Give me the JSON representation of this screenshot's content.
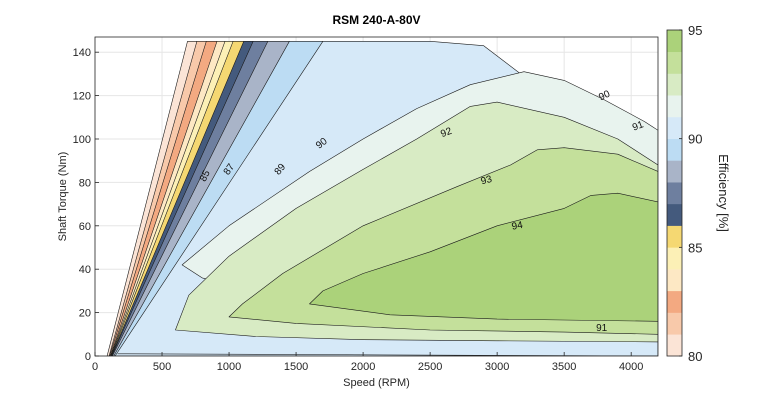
{
  "chart_data": {
    "type": "contour",
    "title": "RSM 240-A-80V",
    "xlabel": "Speed (RPM)",
    "ylabel": "Shaft Torque (Nm)",
    "colorbar_label": "Efficiency [%]",
    "xlim": [
      0,
      4200
    ],
    "ylim": [
      0,
      147
    ],
    "x_ticks": [
      0,
      500,
      1000,
      1500,
      2000,
      2500,
      3000,
      3500,
      4000
    ],
    "y_ticks": [
      0,
      20,
      40,
      60,
      80,
      100,
      120,
      140
    ],
    "colorbar": {
      "range": [
        80,
        95
      ],
      "ticks": [
        80,
        85,
        90,
        95
      ],
      "levels": [
        {
          "from": 80,
          "to": 81,
          "color": "#fbe4d6"
        },
        {
          "from": 81,
          "to": 82,
          "color": "#f8c9aa"
        },
        {
          "from": 82,
          "to": 83,
          "color": "#f3a981"
        },
        {
          "from": 83,
          "to": 84,
          "color": "#fde8c4"
        },
        {
          "from": 84,
          "to": 85,
          "color": "#fcf0b6"
        },
        {
          "from": 85,
          "to": 86,
          "color": "#f5d872"
        },
        {
          "from": 86,
          "to": 87,
          "color": "#445a7d"
        },
        {
          "from": 87,
          "to": 88,
          "color": "#6e7f9f"
        },
        {
          "from": 88,
          "to": 89,
          "color": "#a9b4c8"
        },
        {
          "from": 89,
          "to": 90,
          "color": "#bcdcf3"
        },
        {
          "from": 90,
          "to": 91,
          "color": "#d6e9f8"
        },
        {
          "from": 91,
          "to": 92,
          "color": "#e8f3ee"
        },
        {
          "from": 92,
          "to": 93,
          "color": "#d8ebc4"
        },
        {
          "from": 93,
          "to": 94,
          "color": "#c4e09b"
        },
        {
          "from": 94,
          "to": 95,
          "color": "#abd27a"
        }
      ]
    },
    "regions": [
      {
        "level": 80,
        "points": [
          [
            90,
            0
          ],
          [
            4200,
            0
          ],
          [
            4200,
            2
          ],
          [
            800,
            145
          ],
          [
            690,
            145
          ]
        ]
      },
      {
        "level": 81,
        "points": [
          [
            105,
            0
          ],
          [
            4200,
            0
          ],
          [
            4200,
            2.2
          ],
          [
            870,
            145
          ],
          [
            760,
            145
          ]
        ]
      },
      {
        "level": 82,
        "points": [
          [
            110,
            0
          ],
          [
            4200,
            0
          ],
          [
            4200,
            2.4
          ],
          [
            940,
            145
          ],
          [
            830,
            145
          ]
        ]
      },
      {
        "level": 83,
        "points": [
          [
            115,
            0
          ],
          [
            4200,
            0
          ],
          [
            4200,
            2.6
          ],
          [
            1000,
            145
          ],
          [
            910,
            145
          ]
        ]
      },
      {
        "level": 84,
        "points": [
          [
            118,
            0
          ],
          [
            4200,
            0
          ],
          [
            4200,
            2.8
          ],
          [
            1060,
            145
          ],
          [
            970,
            145
          ]
        ]
      },
      {
        "level": 85,
        "points": [
          [
            120,
            0
          ],
          [
            4200,
            0
          ],
          [
            4200,
            3
          ],
          [
            1140,
            145
          ],
          [
            1030,
            145
          ]
        ]
      },
      {
        "level": 86,
        "points": [
          [
            122,
            0
          ],
          [
            4200,
            0
          ],
          [
            4200,
            3.5
          ],
          [
            1210,
            145
          ],
          [
            1110,
            145
          ]
        ]
      },
      {
        "level": 87,
        "points": [
          [
            125,
            0
          ],
          [
            4200,
            0
          ],
          [
            4200,
            4
          ],
          [
            1420,
            145
          ],
          [
            1180,
            145
          ]
        ]
      },
      {
        "level": 88,
        "points": [
          [
            130,
            0
          ],
          [
            4200,
            0
          ],
          [
            4200,
            5
          ],
          [
            1750,
            145
          ],
          [
            1290,
            145
          ]
        ]
      },
      {
        "level": 89,
        "points": [
          [
            140,
            0
          ],
          [
            4200,
            0
          ],
          [
            4200,
            6
          ],
          [
            2000,
            145
          ],
          [
            1450,
            145
          ]
        ]
      },
      {
        "level": 90,
        "points": [
          [
            150,
            0
          ],
          [
            4200,
            0
          ],
          [
            4200,
            7
          ],
          [
            4050,
            78
          ],
          [
            3600,
            110
          ],
          [
            2900,
            143
          ],
          [
            2500,
            145
          ],
          [
            1700,
            145
          ]
        ]
      },
      {
        "level": 91,
        "points": [
          [
            170,
            1
          ],
          [
            4200,
            0
          ],
          [
            4200,
            9
          ],
          [
            3900,
            12
          ],
          [
            3000,
            16
          ],
          [
            2000,
            22
          ],
          [
            1200,
            30
          ],
          [
            800,
            36
          ],
          [
            650,
            42
          ],
          [
            1000,
            60
          ],
          [
            1600,
            85
          ],
          [
            2000,
            100
          ],
          [
            2400,
            114
          ],
          [
            2800,
            125
          ],
          [
            3200,
            131
          ],
          [
            3500,
            127
          ],
          [
            3800,
            118
          ],
          [
            4100,
            108
          ],
          [
            4200,
            104
          ],
          [
            4200,
            0
          ]
        ]
      },
      {
        "level": 92,
        "points": [
          [
            600,
            12
          ],
          [
            1200,
            9
          ],
          [
            2000,
            7.5
          ],
          [
            3000,
            7
          ],
          [
            4200,
            6.5
          ],
          [
            4200,
            88
          ],
          [
            3900,
            100
          ],
          [
            3500,
            110
          ],
          [
            3000,
            117
          ],
          [
            2800,
            115
          ],
          [
            2400,
            100
          ],
          [
            2000,
            86
          ],
          [
            1500,
            68
          ],
          [
            1000,
            46
          ],
          [
            700,
            28
          ]
        ]
      },
      {
        "level": 93,
        "points": [
          [
            1000,
            18
          ],
          [
            1500,
            15
          ],
          [
            2500,
            12
          ],
          [
            3500,
            11
          ],
          [
            4200,
            10
          ],
          [
            4200,
            85
          ],
          [
            3900,
            93
          ],
          [
            3500,
            96
          ],
          [
            3300,
            95
          ],
          [
            3100,
            88
          ],
          [
            2700,
            78
          ],
          [
            2000,
            60
          ],
          [
            1400,
            38
          ],
          [
            1100,
            24
          ]
        ]
      },
      {
        "level": 94,
        "points": [
          [
            1600,
            24
          ],
          [
            2200,
            19
          ],
          [
            3000,
            17
          ],
          [
            4200,
            16
          ],
          [
            4200,
            71
          ],
          [
            3900,
            75
          ],
          [
            3700,
            74
          ],
          [
            3500,
            68
          ],
          [
            3000,
            60
          ],
          [
            2500,
            48
          ],
          [
            2000,
            38
          ],
          [
            1700,
            30
          ]
        ]
      }
    ],
    "contour_labels": [
      {
        "text": "85",
        "x": 820,
        "y": 83,
        "angle": -62
      },
      {
        "text": "87",
        "x": 1000,
        "y": 86,
        "angle": -55
      },
      {
        "text": "89",
        "x": 1380,
        "y": 86,
        "angle": -50
      },
      {
        "text": "90",
        "x": 1690,
        "y": 98,
        "angle": -38
      },
      {
        "text": "92",
        "x": 2620,
        "y": 103,
        "angle": -20
      },
      {
        "text": "93",
        "x": 2920,
        "y": 81,
        "angle": -15
      },
      {
        "text": "94",
        "x": 3150,
        "y": 60,
        "angle": -10
      },
      {
        "text": "90",
        "x": 3800,
        "y": 120,
        "angle": -25
      },
      {
        "text": "91",
        "x": 4050,
        "y": 106,
        "angle": -20
      },
      {
        "text": "91",
        "x": 3780,
        "y": 13,
        "angle": 0
      }
    ]
  }
}
